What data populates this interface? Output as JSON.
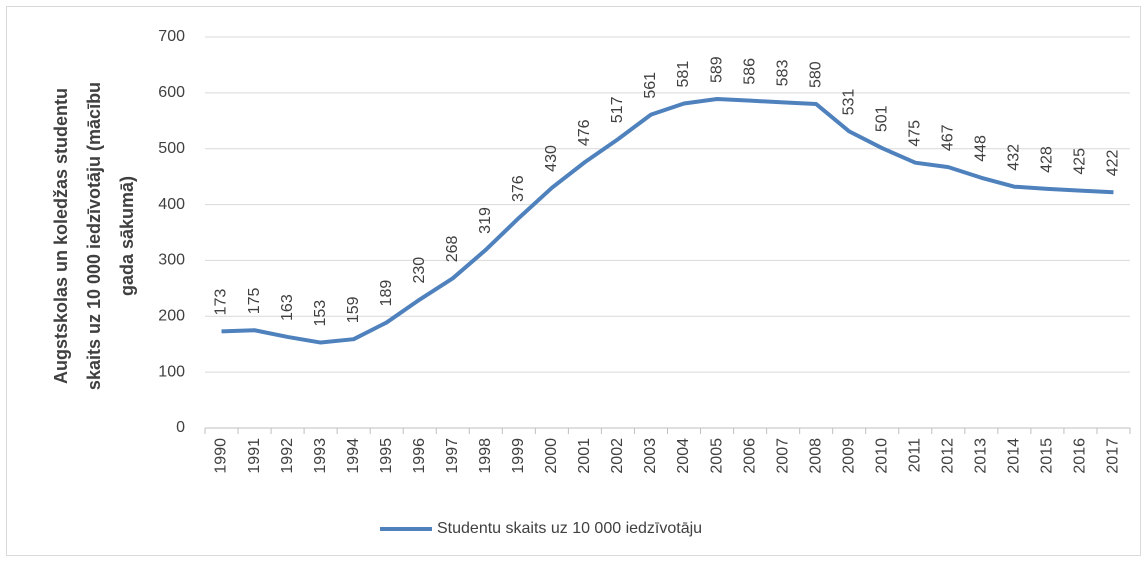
{
  "chart_data": {
    "type": "line",
    "y_label_lines": [
      "Augstskolas un koledžas studentu",
      "skaits uz 10 000 iedzīvotāju (mācību",
      "gada sākumā)"
    ],
    "categories": [
      "1990",
      "1991",
      "1992",
      "1993",
      "1994",
      "1995",
      "1996",
      "1997",
      "1998",
      "1999",
      "2000",
      "2001",
      "2002",
      "2003",
      "2004",
      "2005",
      "2006",
      "2007",
      "2008",
      "2009",
      "2010",
      "2011",
      "2012",
      "2013",
      "2014",
      "2015",
      "2016",
      "2017"
    ],
    "series": [
      {
        "name": "Studentu skaits uz 10 000 iedzīvotāju",
        "color": "#4f81bd",
        "values": [
          173,
          175,
          163,
          153,
          159,
          189,
          230,
          268,
          319,
          376,
          430,
          476,
          517,
          561,
          581,
          589,
          586,
          583,
          580,
          531,
          501,
          475,
          467,
          448,
          432,
          428,
          425,
          422
        ]
      }
    ],
    "ylim": [
      0,
      700
    ],
    "yticks": [
      0,
      100,
      200,
      300,
      400,
      500,
      600,
      700
    ],
    "grid": true,
    "legend": "bottom",
    "data_labels": true
  }
}
